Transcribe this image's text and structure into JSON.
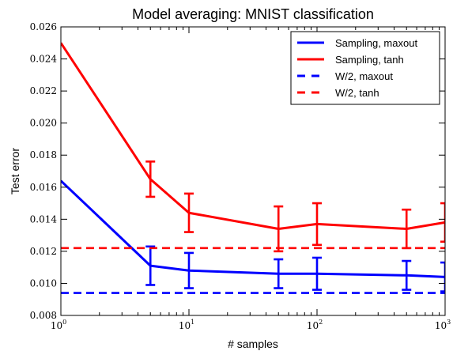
{
  "chart_data": {
    "type": "line",
    "title": "Model averaging: MNIST classification",
    "xlabel": "# samples",
    "ylabel": "Test error",
    "xscale": "log",
    "xlim": [
      1,
      1000
    ],
    "ylim": [
      0.008,
      0.026
    ],
    "xticks": [
      {
        "value": 1,
        "base": "10",
        "exp": "0"
      },
      {
        "value": 10,
        "base": "10",
        "exp": "1"
      },
      {
        "value": 100,
        "base": "10",
        "exp": "2"
      },
      {
        "value": 1000,
        "base": "10",
        "exp": "3"
      }
    ],
    "yticks": [
      0.008,
      0.01,
      0.012,
      0.014,
      0.016,
      0.018,
      0.02,
      0.022,
      0.024,
      0.026
    ],
    "ytick_labels": [
      "0.008",
      "0.010",
      "0.012",
      "0.014",
      "0.016",
      "0.018",
      "0.020",
      "0.022",
      "0.024",
      "0.026"
    ],
    "grid": false,
    "legend_position": "top-right",
    "series": [
      {
        "name": "Sampling, maxout",
        "style": "solid",
        "color": "#0000ff",
        "x": [
          1,
          5,
          10,
          50,
          100,
          500,
          1000
        ],
        "y": [
          0.0164,
          0.0111,
          0.0108,
          0.0106,
          0.0106,
          0.0105,
          0.0104
        ],
        "yerr": [
          null,
          0.0012,
          0.0011,
          0.0009,
          0.001,
          0.0009,
          0.0009
        ]
      },
      {
        "name": "Sampling, tanh",
        "style": "solid",
        "color": "#ff0000",
        "x": [
          1,
          5,
          10,
          50,
          100,
          500,
          1000
        ],
        "y": [
          0.025,
          0.0165,
          0.0144,
          0.0134,
          0.0137,
          0.0134,
          0.0138
        ],
        "yerr": [
          null,
          0.0011,
          0.0012,
          0.0014,
          0.0013,
          0.0012,
          0.0012
        ]
      },
      {
        "name": "W/2, maxout",
        "style": "dashed",
        "color": "#0000ff",
        "hline": 0.0094
      },
      {
        "name": "W/2, tanh",
        "style": "dashed",
        "color": "#ff0000",
        "hline": 0.0122
      }
    ]
  }
}
